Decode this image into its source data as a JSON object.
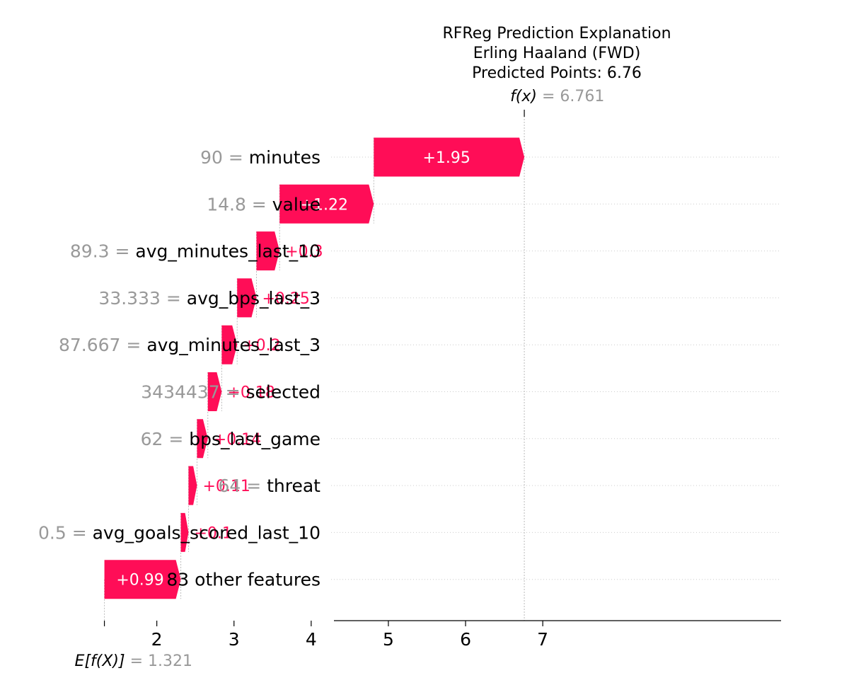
{
  "chart_data": {
    "type": "waterfall",
    "title_lines": [
      "RFReg Prediction Explanation",
      "Erling Haaland (FWD)",
      "Predicted Points: 6.76"
    ],
    "base_value": 1.321,
    "base_value_label": "1.321",
    "base_label_prefix": "E[f(X)]",
    "output_value": 6.761,
    "output_value_label": "6.761",
    "output_label_prefix": "f(x)",
    "equals": "=",
    "xlim": [
      1.3,
      7.1
    ],
    "xticks": [
      2,
      3,
      4,
      5,
      6,
      7
    ],
    "xtick_labels": [
      "2",
      "3",
      "4",
      "5",
      "6",
      "7"
    ],
    "positive_color": "#ff0d57",
    "features": [
      {
        "value": "90",
        "name": "minutes",
        "contribution": 1.95,
        "label": "+1.95"
      },
      {
        "value": "14.8",
        "name": "value",
        "contribution": 1.22,
        "label": "+1.22"
      },
      {
        "value": "89.3",
        "name": "avg_minutes_last_10",
        "contribution": 0.3,
        "label": "+0.3"
      },
      {
        "value": "33.333",
        "name": "avg_bps_last_3",
        "contribution": 0.25,
        "label": "+0.25"
      },
      {
        "value": "87.667",
        "name": "avg_minutes_last_3",
        "contribution": 0.2,
        "label": "+0.2"
      },
      {
        "value": "3434437",
        "name": "selected",
        "contribution": 0.18,
        "label": "+0.18"
      },
      {
        "value": "62",
        "name": "bps_last_game",
        "contribution": 0.14,
        "label": "+0.14"
      },
      {
        "value": "64",
        "name": "threat",
        "contribution": 0.11,
        "label": "+0.11"
      },
      {
        "value": "0.5",
        "name": "avg_goals_scored_last_10",
        "contribution": 0.1,
        "label": "+0.1"
      },
      {
        "value": "",
        "name": "83 other features",
        "contribution": 0.99,
        "label": "+0.99"
      }
    ]
  }
}
